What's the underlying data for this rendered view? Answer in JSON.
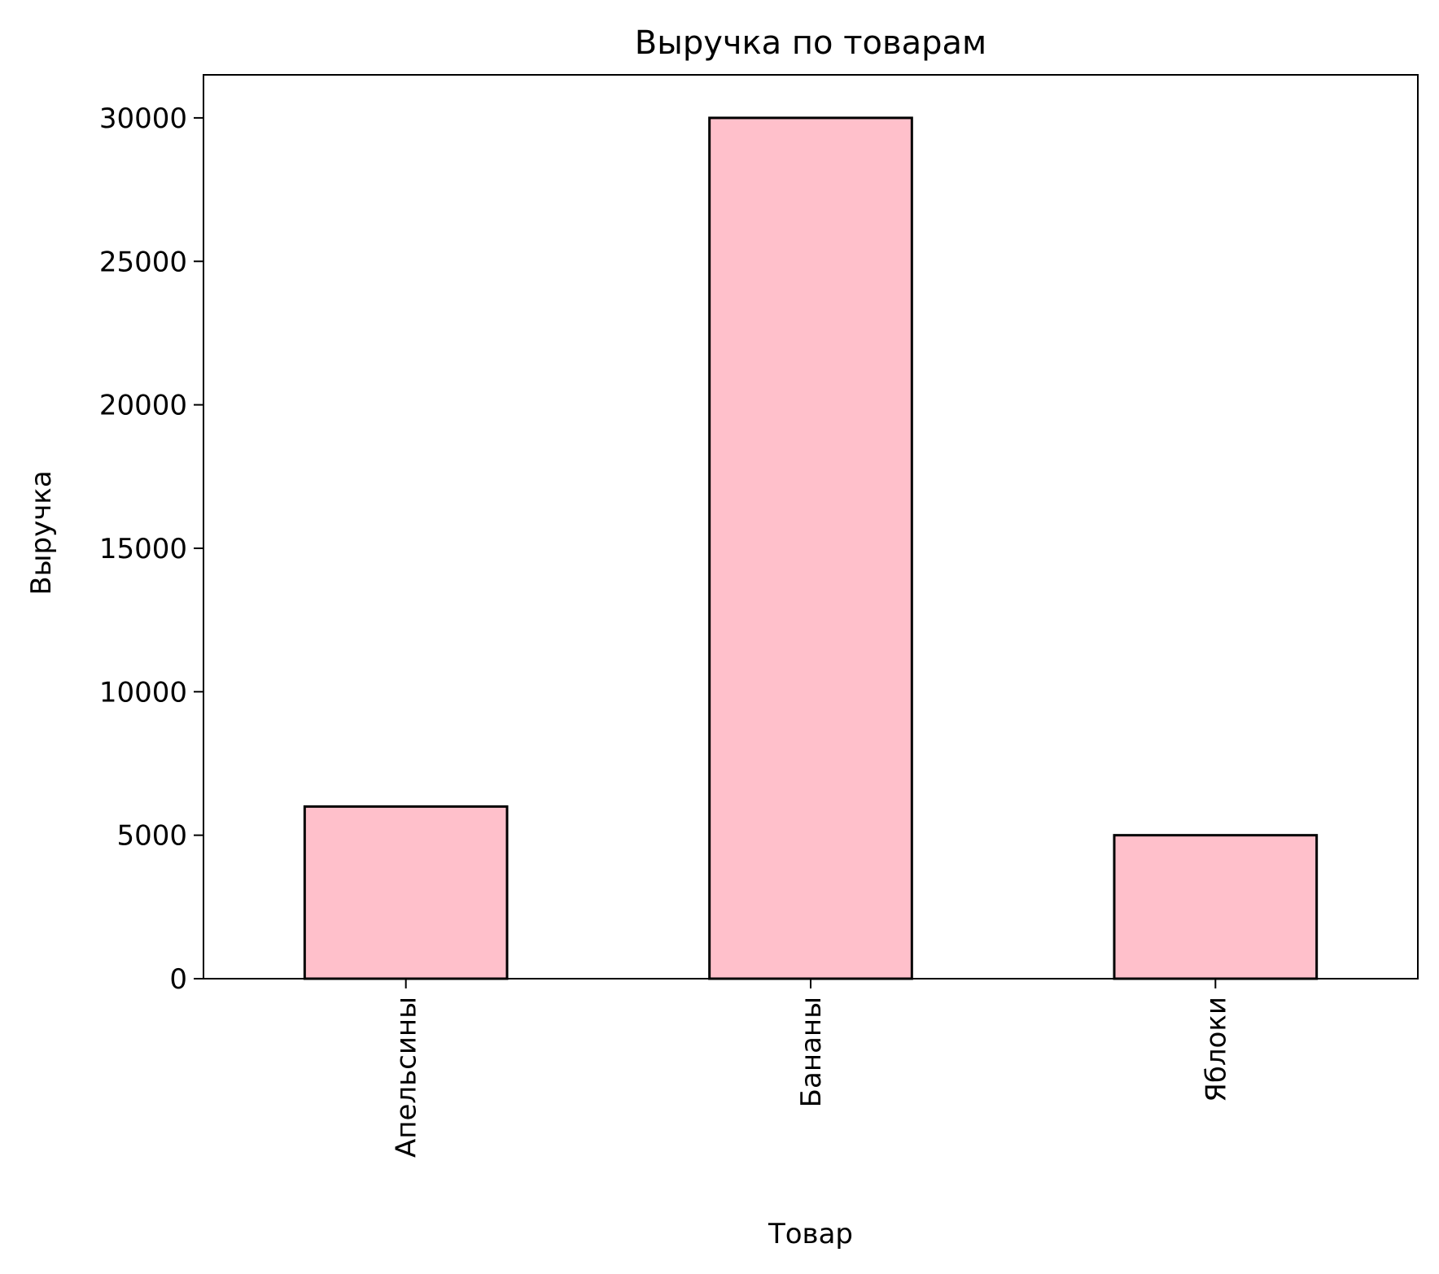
{
  "chart_data": {
    "type": "bar",
    "title": "Выручка по товарам",
    "xlabel": "Товар",
    "ylabel": "Выручка",
    "categories": [
      "Апельсины",
      "Бананы",
      "Яблоки"
    ],
    "values": [
      6000,
      30000,
      5000
    ],
    "ylim": [
      0,
      31500
    ],
    "yticks": [
      0,
      5000,
      10000,
      15000,
      20000,
      25000,
      30000
    ],
    "ytick_labels": [
      "0",
      "5000",
      "10000",
      "15000",
      "20000",
      "25000",
      "30000"
    ],
    "grid": false,
    "legend": "none",
    "xtick_rotation": "vertical",
    "colors": {
      "bar_fill": "#ffc0cb",
      "bar_edge": "#000000",
      "axes": "#000000"
    }
  }
}
